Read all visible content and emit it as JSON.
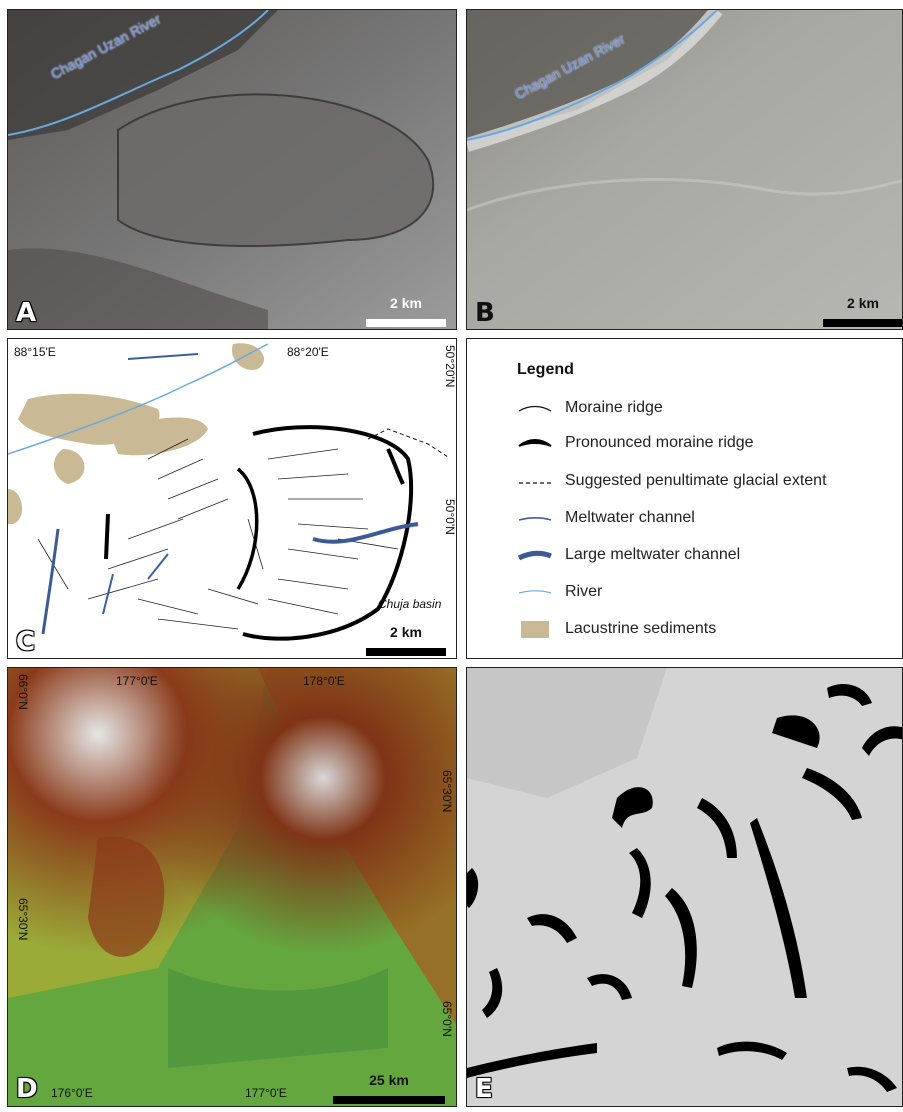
{
  "panels": {
    "a": {
      "label": "A",
      "river_label": "Chagan Uzan River",
      "scale": "2 km"
    },
    "b": {
      "label": "B",
      "river_label": "Chagan Uzan River",
      "scale": "2 km"
    },
    "c": {
      "label": "C",
      "scale": "2 km",
      "basin_label": "Chuja basin",
      "coords": {
        "lon1": "88°15'E",
        "lon2": "88°20'E",
        "lat1": "50°20'N",
        "lat2": "50°0'N"
      }
    },
    "d": {
      "label": "D",
      "scale": "25 km",
      "coords": {
        "top_lon1": "177°0'E",
        "top_lon2": "178°0'E",
        "bot_lon1": "176°0'E",
        "bot_lon2": "177°0'E",
        "left_lat1": "66°0'N",
        "left_lat2": "65°30'N",
        "right_lat1": "65°30'N",
        "right_lat2": "65°0'N"
      }
    },
    "e": {
      "label": "E"
    }
  },
  "legend": {
    "title": "Legend",
    "items": [
      {
        "label": "Moraine ridge",
        "icon": "thin-line",
        "color": "#111111"
      },
      {
        "label": "Pronounced moraine ridge",
        "icon": "thick-wedge",
        "color": "#000000"
      },
      {
        "label": "Suggested penultimate glacial extent",
        "icon": "dashed-line",
        "color": "#111111"
      },
      {
        "label": "Meltwater channel",
        "icon": "blue-line",
        "color": "#3d5f9e"
      },
      {
        "label": "Large meltwater channel",
        "icon": "blue-thick",
        "color": "#3b5a96"
      },
      {
        "label": "River",
        "icon": "river-line",
        "color": "#6aa8df"
      },
      {
        "label": "Lacustrine sediments",
        "icon": "tan-fill",
        "color": "#c9b994"
      }
    ]
  }
}
